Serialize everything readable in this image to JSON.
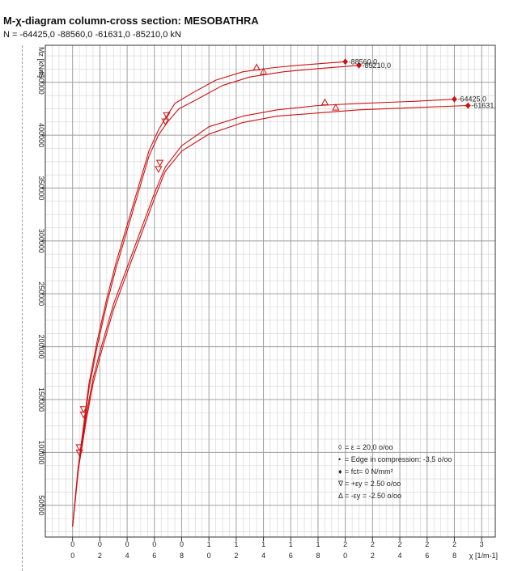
{
  "header": {
    "title": "M-χ-diagram column-cross section: MESOBATHRA",
    "subtitle": "N = -64425,0 -88560,0 -61631,0 -85210,0 kN"
  },
  "colors": {
    "curve": "#d01010",
    "grid": "#c8c8c8",
    "axis": "#333333"
  },
  "chart_data": {
    "type": "line",
    "title": "M-χ-diagram column-cross section: MESOBATHRA",
    "xlabel": "χ [1/m-1]",
    "ylabel": "Mz [kNm]",
    "xlim": [
      -0.002,
      0.031
    ],
    "ylim": [
      20000,
      485000
    ],
    "x_tick_values": [
      0,
      0.002,
      0.004,
      0.006,
      0.008,
      0.01,
      0.012,
      0.014,
      0.016,
      0.018,
      0.02,
      0.022,
      0.024,
      0.026,
      0.028,
      0.03
    ],
    "x_tick_labels_top": [
      "0",
      "0",
      "0",
      "0",
      "0",
      "1",
      "1",
      "1",
      "1",
      "1",
      "2",
      "2",
      "2",
      "2",
      "2",
      "3"
    ],
    "x_tick_labels_bottom": [
      "0",
      "2",
      "4",
      "6",
      "8",
      "0",
      "2",
      "4",
      "6",
      "8",
      "0",
      "2",
      "4",
      "6",
      "8",
      ""
    ],
    "y_tick_values": [
      50000,
      100000,
      150000,
      200000,
      250000,
      300000,
      350000,
      400000,
      450000
    ],
    "y_tick_labels": [
      "50000",
      "100000",
      "150000",
      "200000",
      "250000",
      "300000",
      "350000",
      "400000",
      "450000"
    ],
    "grid": true,
    "series": [
      {
        "name": "-88560,0",
        "x": [
          0.0,
          0.0005,
          0.0008,
          0.0012,
          0.0018,
          0.0025,
          0.0032,
          0.004,
          0.0048,
          0.0056,
          0.0063,
          0.0069,
          0.0075,
          0.0088,
          0.0105,
          0.0125,
          0.0148,
          0.0165,
          0.0185,
          0.02
        ],
        "y": [
          30000,
          95000,
          125000,
          165000,
          205000,
          245000,
          280000,
          315000,
          350000,
          385000,
          405000,
          418000,
          430000,
          440000,
          452000,
          460000,
          464000,
          466000,
          468000,
          469500
        ]
      },
      {
        "name": "-85210,0",
        "x": [
          0.0,
          0.0005,
          0.0008,
          0.0012,
          0.0018,
          0.0025,
          0.0032,
          0.004,
          0.0048,
          0.0056,
          0.0063,
          0.007,
          0.0078,
          0.009,
          0.011,
          0.013,
          0.0155,
          0.018,
          0.02,
          0.021
        ],
        "y": [
          30000,
          93000,
          122000,
          160000,
          200000,
          240000,
          275000,
          310000,
          345000,
          380000,
          400000,
          413000,
          425000,
          433000,
          447000,
          455000,
          460000,
          463000,
          465000,
          466000
        ]
      },
      {
        "name": "-64425,0",
        "x": [
          0.0,
          0.0004,
          0.0007,
          0.001,
          0.0015,
          0.002,
          0.003,
          0.004,
          0.005,
          0.006,
          0.0068,
          0.008,
          0.01,
          0.0125,
          0.015,
          0.018,
          0.021,
          0.025,
          0.028
        ],
        "y": [
          30000,
          85000,
          110000,
          135000,
          170000,
          195000,
          240000,
          275000,
          310000,
          345000,
          370000,
          390000,
          408000,
          418000,
          424000,
          428000,
          430000,
          432000,
          434000
        ]
      },
      {
        "name": "-61631,",
        "x": [
          0.0,
          0.0004,
          0.0007,
          0.001,
          0.0015,
          0.002,
          0.003,
          0.004,
          0.005,
          0.006,
          0.0068,
          0.008,
          0.01,
          0.0125,
          0.015,
          0.018,
          0.021,
          0.025,
          0.029
        ],
        "y": [
          30000,
          82000,
          106000,
          130000,
          165000,
          190000,
          235000,
          270000,
          305000,
          340000,
          366000,
          385000,
          401000,
          412000,
          418000,
          421000,
          424000,
          426000,
          428000
        ]
      }
    ],
    "markers": [
      {
        "symbol": "diamond",
        "x": 0.02,
        "y": 469500
      },
      {
        "symbol": "diamond",
        "x": 0.021,
        "y": 466000
      },
      {
        "symbol": "diamond",
        "x": 0.028,
        "y": 434000
      },
      {
        "symbol": "diamond",
        "x": 0.029,
        "y": 428000
      },
      {
        "symbol": "triangle-up",
        "x": 0.0135,
        "y": 464000
      },
      {
        "symbol": "triangle-up",
        "x": 0.014,
        "y": 460000
      },
      {
        "symbol": "triangle-up",
        "x": 0.0185,
        "y": 431000
      },
      {
        "symbol": "triangle-up",
        "x": 0.0193,
        "y": 426000
      },
      {
        "symbol": "triangle-down",
        "x": 0.0069,
        "y": 419000
      },
      {
        "symbol": "triangle-down",
        "x": 0.0068,
        "y": 413000
      },
      {
        "symbol": "triangle-down",
        "x": 0.0064,
        "y": 374000
      },
      {
        "symbol": "triangle-down",
        "x": 0.0063,
        "y": 368000
      },
      {
        "symbol": "triangle-down",
        "x": 0.0008,
        "y": 141000
      },
      {
        "symbol": "triangle-down",
        "x": 0.0008,
        "y": 136000
      },
      {
        "symbol": "triangle-down",
        "x": 0.0005,
        "y": 105000
      },
      {
        "symbol": "triangle-down",
        "x": 0.0005,
        "y": 100000
      }
    ],
    "legend": {
      "placement": "bottom-right",
      "entries": [
        {
          "symbol": "◊",
          "text": "= ε = 20,0 o/oo"
        },
        {
          "symbol": "•",
          "text": "= Edge in compression: -3,5 o/oo"
        },
        {
          "symbol": "♦",
          "text": "= fct= 0 N/mm²"
        },
        {
          "symbol": "∇",
          "text": "= +εy = 2.50 o/oo"
        },
        {
          "symbol": "Δ",
          "text": "= -εy = -2.50 o/oo"
        }
      ]
    }
  }
}
